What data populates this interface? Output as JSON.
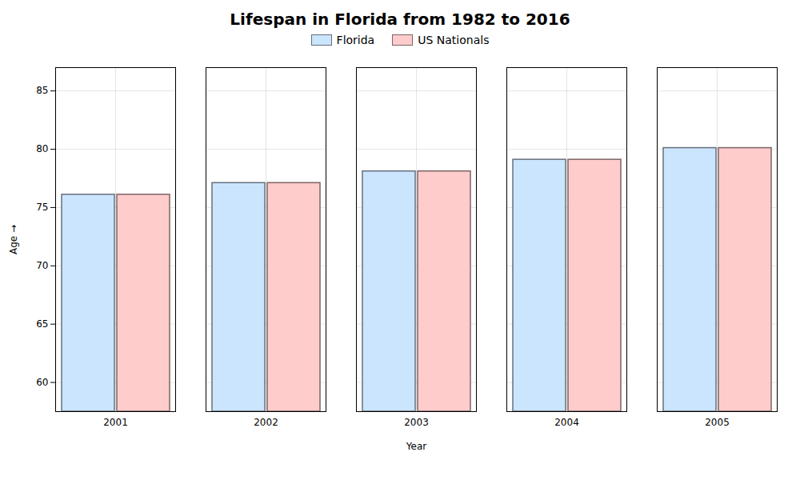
{
  "chart_data": {
    "type": "bar",
    "title": "Lifespan in Florida from 1982 to 2016",
    "xlabel": "Year",
    "ylabel": "Age",
    "categories": [
      "2001",
      "2002",
      "2003",
      "2004",
      "2005"
    ],
    "series": [
      {
        "name": "Florida",
        "color": "#cce5ff",
        "values": [
          76.1,
          77.1,
          78.1,
          79.1,
          80.1
        ]
      },
      {
        "name": "US Nationals",
        "color": "#ffcccc",
        "values": [
          76.1,
          77.1,
          78.1,
          79.1,
          80.1
        ]
      }
    ],
    "ylim": [
      57.5,
      87
    ],
    "yticks": [
      60,
      65,
      70,
      75,
      80,
      85
    ],
    "grid": true,
    "legend": "top"
  }
}
